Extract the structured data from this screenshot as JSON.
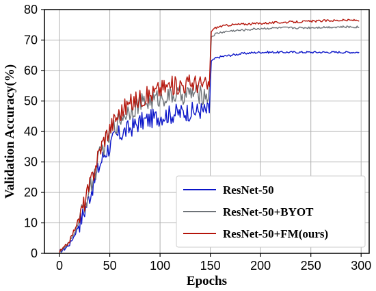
{
  "chart_data": {
    "type": "line",
    "title": "",
    "xlabel": "Epochs",
    "ylabel": "Validation Accuracy(%)",
    "xlim": [
      -15,
      308
    ],
    "ylim": [
      0,
      80
    ],
    "xticks": [
      0,
      50,
      100,
      150,
      200,
      250,
      300
    ],
    "yticks": [
      0,
      10,
      20,
      30,
      40,
      50,
      60,
      70,
      80
    ],
    "grid": true,
    "legend_position": "lower-right",
    "series": [
      {
        "name": "ResNet-50",
        "color": "#0a14c8",
        "points": [
          [
            0,
            0.5
          ],
          [
            5,
            1.5
          ],
          [
            10,
            3
          ],
          [
            15,
            6
          ],
          [
            20,
            10
          ],
          [
            25,
            14
          ],
          [
            30,
            19
          ],
          [
            35,
            24
          ],
          [
            40,
            29
          ],
          [
            45,
            33
          ],
          [
            50,
            35
          ],
          [
            55,
            38
          ],
          [
            60,
            39
          ],
          [
            65,
            40
          ],
          [
            70,
            41
          ],
          [
            75,
            42
          ],
          [
            80,
            43
          ],
          [
            85,
            43.5
          ],
          [
            90,
            44
          ],
          [
            95,
            44.5
          ],
          [
            100,
            45
          ],
          [
            105,
            45.5
          ],
          [
            110,
            45.5
          ],
          [
            115,
            46
          ],
          [
            120,
            46
          ],
          [
            125,
            46.5
          ],
          [
            130,
            46.5
          ],
          [
            135,
            46.5
          ],
          [
            140,
            47
          ],
          [
            145,
            46.5
          ],
          [
            149,
            47
          ],
          [
            151,
            63
          ],
          [
            155,
            64
          ],
          [
            160,
            64.5
          ],
          [
            170,
            65
          ],
          [
            180,
            65.5
          ],
          [
            190,
            65.8
          ],
          [
            200,
            66
          ],
          [
            220,
            66
          ],
          [
            240,
            66
          ],
          [
            260,
            66
          ],
          [
            280,
            66
          ],
          [
            298,
            66
          ]
        ]
      },
      {
        "name": "ResNet-50+BYOT",
        "color": "#6e7378",
        "points": [
          [
            0,
            0.5
          ],
          [
            5,
            1.8
          ],
          [
            10,
            3.5
          ],
          [
            15,
            7
          ],
          [
            20,
            11
          ],
          [
            25,
            16
          ],
          [
            30,
            21
          ],
          [
            35,
            26
          ],
          [
            40,
            32
          ],
          [
            45,
            36
          ],
          [
            50,
            39
          ],
          [
            55,
            42
          ],
          [
            60,
            44
          ],
          [
            65,
            46
          ],
          [
            70,
            47
          ],
          [
            75,
            48
          ],
          [
            80,
            49
          ],
          [
            85,
            49.5
          ],
          [
            90,
            50
          ],
          [
            95,
            50.5
          ],
          [
            100,
            51
          ],
          [
            105,
            51.5
          ],
          [
            110,
            51.5
          ],
          [
            115,
            52
          ],
          [
            120,
            52
          ],
          [
            125,
            52
          ],
          [
            130,
            52.5
          ],
          [
            135,
            52.5
          ],
          [
            140,
            52
          ],
          [
            145,
            52
          ],
          [
            149,
            52
          ],
          [
            151,
            71
          ],
          [
            155,
            72
          ],
          [
            160,
            72.5
          ],
          [
            170,
            73
          ],
          [
            180,
            73.2
          ],
          [
            190,
            73.5
          ],
          [
            200,
            73.8
          ],
          [
            220,
            74
          ],
          [
            240,
            74
          ],
          [
            260,
            74.2
          ],
          [
            280,
            74.3
          ],
          [
            298,
            74.3
          ]
        ]
      },
      {
        "name": "ResNet-50+FM(ours)",
        "color": "#b4140a",
        "points": [
          [
            0,
            0.5
          ],
          [
            5,
            2
          ],
          [
            10,
            4
          ],
          [
            15,
            8
          ],
          [
            20,
            12
          ],
          [
            25,
            17
          ],
          [
            30,
            22
          ],
          [
            35,
            28
          ],
          [
            40,
            34
          ],
          [
            45,
            38
          ],
          [
            50,
            41
          ],
          [
            55,
            44
          ],
          [
            60,
            46
          ],
          [
            65,
            48
          ],
          [
            70,
            49
          ],
          [
            75,
            50
          ],
          [
            80,
            51
          ],
          [
            85,
            51.5
          ],
          [
            90,
            52
          ],
          [
            95,
            53
          ],
          [
            100,
            54
          ],
          [
            105,
            54.5
          ],
          [
            110,
            55
          ],
          [
            115,
            55
          ],
          [
            120,
            55.5
          ],
          [
            125,
            55.5
          ],
          [
            130,
            56
          ],
          [
            135,
            56
          ],
          [
            140,
            55.5
          ],
          [
            145,
            55
          ],
          [
            149,
            55
          ],
          [
            151,
            73
          ],
          [
            155,
            74
          ],
          [
            160,
            74.5
          ],
          [
            170,
            75
          ],
          [
            180,
            75.2
          ],
          [
            190,
            75.3
          ],
          [
            200,
            75.5
          ],
          [
            220,
            75.8
          ],
          [
            240,
            76
          ],
          [
            260,
            76.3
          ],
          [
            280,
            76.5
          ],
          [
            298,
            76.5
          ]
        ]
      }
    ]
  }
}
